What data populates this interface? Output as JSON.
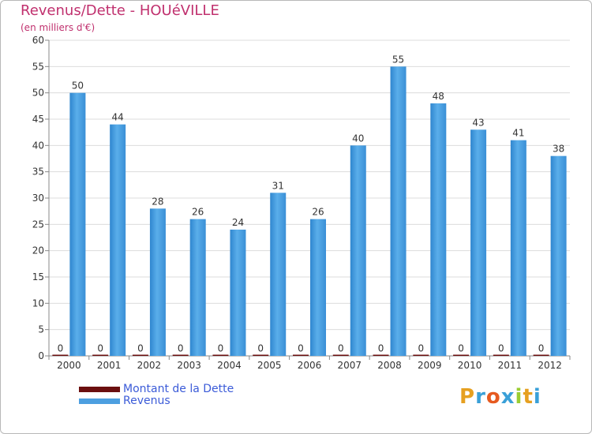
{
  "header": {
    "title": "Revenus/Dette - HOUéVILLE",
    "subtitle": "(en milliers d'€)"
  },
  "legend": {
    "items": [
      {
        "label": "Montant de la Dette",
        "color": "#6b0f0f"
      },
      {
        "label": "Revenus",
        "color": "#4d9fe0"
      }
    ]
  },
  "logo": {
    "letters": [
      "P",
      "r",
      "o",
      "x",
      "i",
      "t",
      "i"
    ],
    "colors": [
      "#e6a020",
      "#3aa0d8",
      "#e65a20",
      "#3aa0d8",
      "#9acd32",
      "#e6a020",
      "#3aa0d8"
    ]
  },
  "chart_data": {
    "type": "bar",
    "title": "Revenus/Dette - HOUéVILLE",
    "subtitle": "(en milliers d'€)",
    "categories": [
      "2000",
      "2001",
      "2002",
      "2003",
      "2004",
      "2005",
      "2006",
      "2007",
      "2008",
      "2009",
      "2010",
      "2011",
      "2012"
    ],
    "series": [
      {
        "name": "Montant de la Dette",
        "values": [
          0,
          0,
          0,
          0,
          0,
          0,
          0,
          0,
          0,
          0,
          0,
          0,
          0
        ],
        "color": "#6b0f0f"
      },
      {
        "name": "Revenus",
        "values": [
          50,
          44,
          28,
          26,
          24,
          31,
          26,
          40,
          55,
          48,
          43,
          41,
          38
        ],
        "color": "#4d9fe0"
      }
    ],
    "ylim": [
      0,
      60
    ],
    "yticks": [
      "0",
      "5",
      "10",
      "15",
      "20",
      "25",
      "30",
      "35",
      "40",
      "45",
      "50",
      "55",
      "60"
    ],
    "grid": true,
    "legend_position": "bottom-left"
  }
}
